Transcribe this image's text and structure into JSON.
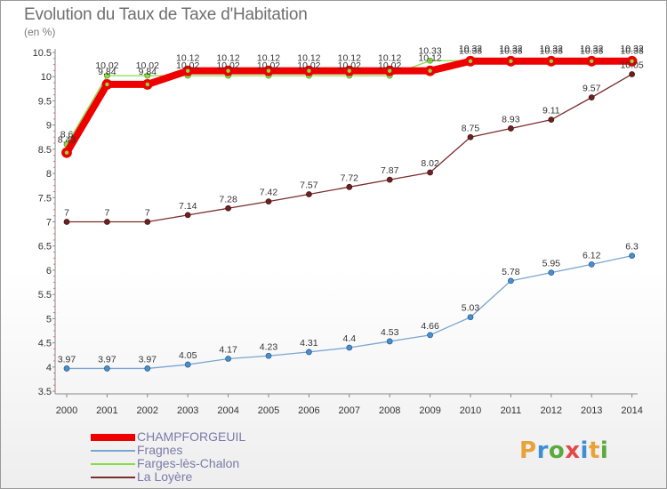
{
  "chart_data": {
    "type": "line",
    "title": "Evolution du Taux de Taxe d'Habitation",
    "ylabel": "(en %)",
    "xlabel": "",
    "ylim": [
      3.5,
      10.5
    ],
    "y_ticks": [
      "3.5",
      "4",
      "4.5",
      "5",
      "5.5",
      "6",
      "6.5",
      "7",
      "7.5",
      "8",
      "8.5",
      "9",
      "9.5",
      "10",
      "10.5"
    ],
    "categories": [
      "2000",
      "2001",
      "2002",
      "2003",
      "2004",
      "2005",
      "2006",
      "2007",
      "2008",
      "2009",
      "2010",
      "2011",
      "2012",
      "2013",
      "2014"
    ],
    "legend_position": "bottom-left",
    "grid": false,
    "series": [
      {
        "name": "CHAMPFORGEUIL",
        "color": "#ee0000",
        "values": [
          8.43,
          9.84,
          9.84,
          10.12,
          10.12,
          10.12,
          10.12,
          10.12,
          10.12,
          10.12,
          10.32,
          10.32,
          10.32,
          10.32,
          10.32
        ],
        "labels": [
          "8.43",
          "9.84",
          "9.84",
          "10.12",
          "10.12",
          "10.12",
          "10.12",
          "10.12",
          "10.12",
          "10.12",
          "10.32",
          "10.32",
          "10.32",
          "10.32",
          "10.32"
        ]
      },
      {
        "name": "Fragnes",
        "color": "#79a6d2",
        "values": [
          3.97,
          3.97,
          3.97,
          4.05,
          4.17,
          4.23,
          4.31,
          4.4,
          4.53,
          4.66,
          5.03,
          5.78,
          5.95,
          6.12,
          6.3
        ],
        "labels": [
          "3.97",
          "3.97",
          "3.97",
          "4.05",
          "4.17",
          "4.23",
          "4.31",
          "4.4",
          "4.53",
          "4.66",
          "5.03",
          "5.78",
          "5.95",
          "6.12",
          "6.3"
        ]
      },
      {
        "name": "Farges-lès-Chalon",
        "color": "#88dd44",
        "values": [
          8.6,
          10.02,
          10.02,
          10.02,
          10.02,
          10.02,
          10.02,
          10.02,
          10.02,
          10.33,
          10.33,
          10.33,
          10.33,
          10.33,
          10.33
        ],
        "labels": [
          "8.6",
          "10.02",
          "10.02",
          "10.02",
          "10.02",
          "10.02",
          "10.02",
          "10.02",
          "10.02",
          "10.33",
          "10.33",
          "10.33",
          "10.33",
          "10.33",
          "10.33"
        ]
      },
      {
        "name": "La Loyère",
        "color": "#7a2d2d",
        "values": [
          7,
          7,
          7,
          7.14,
          7.28,
          7.42,
          7.57,
          7.72,
          7.87,
          8.02,
          8.75,
          8.93,
          9.11,
          9.57,
          10.05
        ],
        "labels": [
          "7",
          "7",
          "7",
          "7.14",
          "7.28",
          "7.42",
          "7.57",
          "7.72",
          "7.87",
          "8.02",
          "8.75",
          "8.93",
          "9.11",
          "9.57",
          "10.05"
        ]
      }
    ]
  },
  "legend": {
    "items": [
      "CHAMPFORGEUIL",
      "Fragnes",
      "Farges-lès-Chalon",
      "La Loyère"
    ]
  },
  "logo": {
    "text": "Proxiti",
    "colors": [
      "#e8a23a",
      "#3c8fd6",
      "#5aaa3c",
      "#e24a4a",
      "#3c8fd6",
      "#e8a23a",
      "#5aaa3c"
    ]
  }
}
